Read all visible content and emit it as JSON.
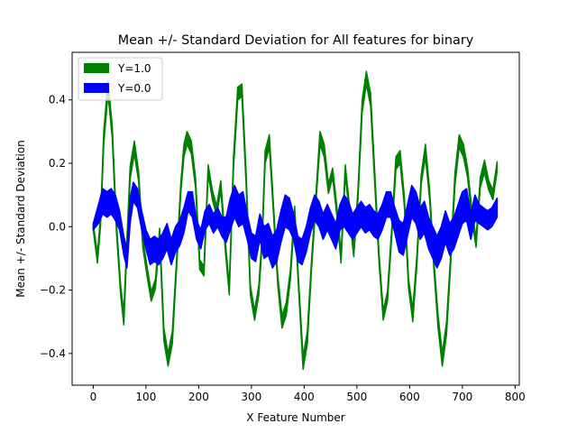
{
  "chart_data": {
    "type": "area",
    "title": "Mean +/- Standard Deviation for All features for binary",
    "xlabel": "X Feature Number",
    "ylabel": "Mean +/- Standard Deviation",
    "xlim": [
      -40,
      808
    ],
    "ylim": [
      -0.5,
      0.55
    ],
    "x_ticks": [
      0,
      100,
      200,
      300,
      400,
      500,
      600,
      700,
      800
    ],
    "x_tick_labels": [
      "0",
      "100",
      "200",
      "300",
      "400",
      "500",
      "600",
      "700",
      "800"
    ],
    "y_ticks": [
      -0.4,
      -0.2,
      0.0,
      0.2,
      0.4
    ],
    "y_tick_labels": [
      "−0.4",
      "−0.2",
      "0.0",
      "0.2",
      "0.4"
    ],
    "grid": false,
    "legend_position": "top-left",
    "series": [
      {
        "name": "Y=1.0",
        "color": "#008000",
        "x": [
          0,
          8,
          14,
          20,
          28,
          36,
          44,
          52,
          58,
          64,
          70,
          78,
          86,
          94,
          102,
          110,
          118,
          126,
          134,
          142,
          150,
          158,
          166,
          172,
          178,
          186,
          194,
          202,
          210,
          218,
          226,
          234,
          242,
          250,
          258,
          266,
          274,
          282,
          290,
          298,
          306,
          314,
          320,
          326,
          334,
          342,
          350,
          358,
          366,
          374,
          382,
          390,
          398,
          406,
          414,
          422,
          430,
          438,
          446,
          454,
          462,
          470,
          478,
          486,
          494,
          502,
          510,
          518,
          526,
          534,
          542,
          550,
          558,
          566,
          574,
          582,
          590,
          598,
          606,
          614,
          622,
          630,
          638,
          646,
          654,
          662,
          670,
          678,
          686,
          694,
          702,
          710,
          718,
          726,
          734,
          742,
          750,
          758,
          766
        ],
        "mean": [
          0.0,
          -0.1,
          0.02,
          0.28,
          0.44,
          0.3,
          0.0,
          -0.2,
          -0.29,
          -0.05,
          0.17,
          0.25,
          0.16,
          -0.05,
          -0.14,
          -0.22,
          -0.18,
          -0.02,
          -0.34,
          -0.42,
          -0.35,
          -0.12,
          0.12,
          0.24,
          0.28,
          0.25,
          0.14,
          -0.12,
          -0.14,
          0.18,
          0.1,
          0.05,
          0.13,
          -0.05,
          -0.2,
          0.2,
          0.42,
          0.43,
          0.15,
          -0.2,
          -0.28,
          -0.2,
          -0.05,
          0.22,
          0.27,
          0.05,
          -0.17,
          -0.3,
          -0.26,
          -0.15,
          0.05,
          -0.2,
          -0.43,
          -0.35,
          -0.12,
          0.08,
          0.28,
          0.24,
          0.12,
          0.17,
          0.05,
          -0.1,
          0.18,
          0.05,
          -0.08,
          0.1,
          0.38,
          0.47,
          0.4,
          0.15,
          -0.1,
          -0.28,
          -0.22,
          -0.02,
          0.2,
          0.22,
          0.08,
          -0.18,
          -0.28,
          -0.1,
          0.15,
          0.24,
          0.1,
          -0.12,
          -0.3,
          -0.42,
          -0.32,
          -0.1,
          0.15,
          0.27,
          0.24,
          0.17,
          0.04,
          -0.05,
          0.14,
          0.19,
          0.13,
          0.1,
          0.19
        ],
        "std": [
          0.01,
          0.015,
          0.015,
          0.02,
          0.02,
          0.02,
          0.015,
          0.015,
          0.02,
          0.015,
          0.02,
          0.02,
          0.015,
          0.015,
          0.015,
          0.015,
          0.015,
          0.015,
          0.02,
          0.02,
          0.02,
          0.015,
          0.015,
          0.02,
          0.02,
          0.02,
          0.015,
          0.015,
          0.015,
          0.015,
          0.015,
          0.015,
          0.015,
          0.015,
          0.015,
          0.02,
          0.02,
          0.02,
          0.02,
          0.015,
          0.015,
          0.015,
          0.015,
          0.02,
          0.02,
          0.015,
          0.015,
          0.02,
          0.02,
          0.015,
          0.015,
          0.015,
          0.02,
          0.02,
          0.015,
          0.015,
          0.02,
          0.02,
          0.015,
          0.015,
          0.015,
          0.015,
          0.015,
          0.015,
          0.015,
          0.015,
          0.02,
          0.02,
          0.02,
          0.02,
          0.015,
          0.015,
          0.015,
          0.015,
          0.02,
          0.02,
          0.015,
          0.015,
          0.02,
          0.015,
          0.015,
          0.02,
          0.015,
          0.015,
          0.02,
          0.02,
          0.02,
          0.015,
          0.02,
          0.02,
          0.02,
          0.015,
          0.015,
          0.015,
          0.015,
          0.02,
          0.015,
          0.015,
          0.015
        ]
      },
      {
        "name": "Y=0.0",
        "color": "#0000ff",
        "x": [
          0,
          10,
          18,
          26,
          34,
          42,
          50,
          58,
          64,
          70,
          76,
          84,
          92,
          100,
          108,
          116,
          124,
          132,
          140,
          148,
          156,
          164,
          172,
          180,
          188,
          196,
          204,
          212,
          220,
          228,
          236,
          244,
          252,
          260,
          268,
          276,
          284,
          292,
          300,
          308,
          316,
          324,
          332,
          340,
          348,
          356,
          364,
          372,
          380,
          388,
          396,
          404,
          412,
          420,
          428,
          436,
          444,
          452,
          460,
          468,
          476,
          484,
          492,
          500,
          508,
          516,
          524,
          532,
          540,
          548,
          556,
          564,
          572,
          580,
          588,
          596,
          604,
          612,
          620,
          628,
          636,
          644,
          652,
          660,
          668,
          676,
          684,
          692,
          700,
          708,
          716,
          724,
          732,
          740,
          748,
          756,
          766
        ],
        "mean": [
          0.0,
          0.04,
          0.08,
          0.07,
          0.08,
          0.06,
          0.02,
          -0.06,
          -0.1,
          0.05,
          0.11,
          0.09,
          0.02,
          -0.04,
          -0.08,
          -0.07,
          -0.08,
          -0.06,
          -0.03,
          -0.08,
          -0.04,
          -0.02,
          0.02,
          0.08,
          0.07,
          -0.01,
          -0.04,
          0.02,
          0.04,
          0.01,
          0.03,
          0.0,
          -0.01,
          0.04,
          0.08,
          0.05,
          0.06,
          0.0,
          -0.06,
          -0.07,
          0.0,
          -0.05,
          -0.04,
          -0.08,
          -0.06,
          0.0,
          0.05,
          0.04,
          0.0,
          -0.07,
          -0.08,
          -0.04,
          0.02,
          0.06,
          0.04,
          0.0,
          0.03,
          0.0,
          -0.03,
          0.03,
          0.05,
          0.03,
          0.0,
          0.02,
          0.04,
          0.02,
          0.03,
          0.01,
          0.0,
          0.03,
          0.07,
          0.07,
          0.02,
          -0.03,
          -0.04,
          0.02,
          0.08,
          0.06,
          0.01,
          0.03,
          -0.02,
          -0.05,
          -0.08,
          -0.05,
          0.0,
          -0.04,
          -0.02,
          0.02,
          0.06,
          0.07,
          0.0,
          0.06,
          0.04,
          0.03,
          0.02,
          0.03,
          0.06
        ],
        "std": [
          0.01,
          0.03,
          0.04,
          0.04,
          0.04,
          0.04,
          0.03,
          0.03,
          0.03,
          0.04,
          0.03,
          0.03,
          0.03,
          0.03,
          0.04,
          0.04,
          0.04,
          0.04,
          0.04,
          0.04,
          0.04,
          0.04,
          0.04,
          0.03,
          0.04,
          0.03,
          0.03,
          0.03,
          0.03,
          0.03,
          0.03,
          0.03,
          0.04,
          0.05,
          0.05,
          0.05,
          0.05,
          0.04,
          0.04,
          0.04,
          0.04,
          0.05,
          0.05,
          0.05,
          0.05,
          0.05,
          0.05,
          0.05,
          0.04,
          0.04,
          0.04,
          0.04,
          0.04,
          0.04,
          0.04,
          0.04,
          0.04,
          0.04,
          0.04,
          0.04,
          0.05,
          0.05,
          0.04,
          0.04,
          0.04,
          0.04,
          0.04,
          0.04,
          0.04,
          0.04,
          0.04,
          0.04,
          0.04,
          0.05,
          0.05,
          0.05,
          0.05,
          0.05,
          0.05,
          0.05,
          0.05,
          0.05,
          0.05,
          0.05,
          0.05,
          0.05,
          0.05,
          0.05,
          0.05,
          0.05,
          0.04,
          0.04,
          0.03,
          0.03,
          0.03,
          0.03,
          0.03
        ]
      }
    ]
  }
}
